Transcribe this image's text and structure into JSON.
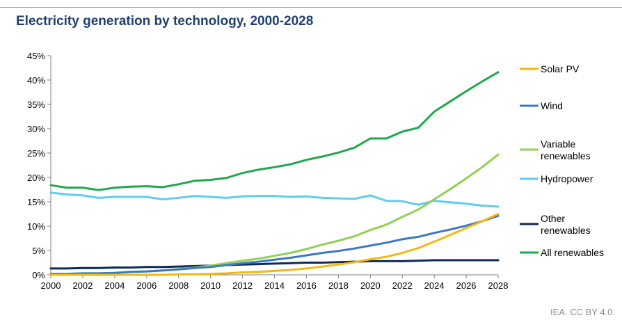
{
  "title": "Electricity generation by technology, 2000-2028",
  "source": "IEA. CC BY 4.0.",
  "chart_data": {
    "type": "line",
    "title": "Electricity generation by technology, 2000-2028",
    "xlabel": "",
    "ylabel": "",
    "x": [
      2000,
      2001,
      2002,
      2003,
      2004,
      2005,
      2006,
      2007,
      2008,
      2009,
      2010,
      2011,
      2012,
      2013,
      2014,
      2015,
      2016,
      2017,
      2018,
      2019,
      2020,
      2021,
      2022,
      2023,
      2024,
      2025,
      2026,
      2027,
      2028
    ],
    "x_ticks": [
      "2000",
      "2002",
      "2004",
      "2006",
      "2008",
      "2010",
      "2012",
      "2014",
      "2016",
      "2018",
      "2020",
      "2022",
      "2024",
      "2026",
      "2028"
    ],
    "x_tick_values": [
      2000,
      2002,
      2004,
      2006,
      2008,
      2010,
      2012,
      2014,
      2016,
      2018,
      2020,
      2022,
      2024,
      2026,
      2028
    ],
    "xlim": [
      2000,
      2028
    ],
    "y_ticks": [
      "0%",
      "5%",
      "10%",
      "15%",
      "20%",
      "25%",
      "30%",
      "35%",
      "40%",
      "45%"
    ],
    "y_tick_values": [
      0,
      5,
      10,
      15,
      20,
      25,
      30,
      35,
      40,
      45
    ],
    "ylim": [
      0,
      45
    ],
    "grid": false,
    "legend_position": "right",
    "series": [
      {
        "name": "Solar PV",
        "color": "#f2b90f",
        "values": [
          0.0,
          0.0,
          0.0,
          0.0,
          0.0,
          0.0,
          0.0,
          0.0,
          0.1,
          0.1,
          0.2,
          0.3,
          0.5,
          0.6,
          0.8,
          1.0,
          1.3,
          1.7,
          2.1,
          2.6,
          3.2,
          3.7,
          4.5,
          5.5,
          6.8,
          8.2,
          9.6,
          11.0,
          12.5
        ]
      },
      {
        "name": "Wind",
        "color": "#3c78c3",
        "values": [
          0.2,
          0.2,
          0.3,
          0.3,
          0.4,
          0.6,
          0.7,
          0.9,
          1.1,
          1.4,
          1.6,
          2.0,
          2.4,
          2.7,
          3.1,
          3.5,
          4.0,
          4.5,
          4.9,
          5.4,
          6.0,
          6.6,
          7.3,
          7.8,
          8.6,
          9.3,
          10.1,
          11.0,
          12.1
        ]
      },
      {
        "name": "Variable renewables",
        "color": "#92d050",
        "values": [
          0.2,
          0.2,
          0.3,
          0.3,
          0.4,
          0.6,
          0.7,
          0.9,
          1.2,
          1.5,
          1.9,
          2.4,
          2.9,
          3.3,
          3.9,
          4.5,
          5.3,
          6.2,
          7.0,
          7.9,
          9.2,
          10.3,
          11.9,
          13.4,
          15.5,
          17.6,
          19.8,
          22.1,
          24.7
        ]
      },
      {
        "name": "Hydropower",
        "color": "#5ecdf0",
        "values": [
          16.9,
          16.5,
          16.3,
          15.8,
          16.0,
          16.0,
          16.0,
          15.5,
          15.8,
          16.2,
          16.0,
          15.8,
          16.1,
          16.2,
          16.2,
          16.0,
          16.1,
          15.8,
          15.7,
          15.6,
          16.3,
          15.2,
          15.1,
          14.4,
          15.2,
          14.9,
          14.6,
          14.2,
          14.0
        ]
      },
      {
        "name": "Other renewables",
        "color": "#0f2a57",
        "values": [
          1.3,
          1.3,
          1.4,
          1.4,
          1.5,
          1.5,
          1.6,
          1.6,
          1.7,
          1.8,
          1.9,
          2.0,
          2.1,
          2.2,
          2.3,
          2.4,
          2.5,
          2.5,
          2.6,
          2.7,
          2.8,
          2.8,
          2.8,
          2.9,
          3.0,
          3.0,
          3.0,
          3.0,
          3.0
        ]
      },
      {
        "name": "All renewables",
        "color": "#1ea84b",
        "values": [
          18.4,
          17.9,
          17.9,
          17.4,
          17.9,
          18.1,
          18.2,
          18.0,
          18.6,
          19.3,
          19.5,
          19.9,
          20.9,
          21.6,
          22.1,
          22.7,
          23.6,
          24.3,
          25.1,
          26.1,
          28.0,
          28.0,
          29.4,
          30.2,
          33.5,
          35.6,
          37.7,
          39.7,
          41.6
        ]
      }
    ],
    "legend": [
      {
        "series": "Solar PV",
        "lines": [
          "Solar PV"
        ]
      },
      {
        "series": "Wind",
        "lines": [
          "Wind"
        ]
      },
      {
        "series": "Variable renewables",
        "lines": [
          "Variable",
          "renewables"
        ]
      },
      {
        "series": "Hydropower",
        "lines": [
          "Hydropower"
        ]
      },
      {
        "series": "Other renewables",
        "lines": [
          "Other",
          "renewables"
        ]
      },
      {
        "series": "All renewables",
        "lines": [
          "All renewables"
        ]
      }
    ]
  }
}
